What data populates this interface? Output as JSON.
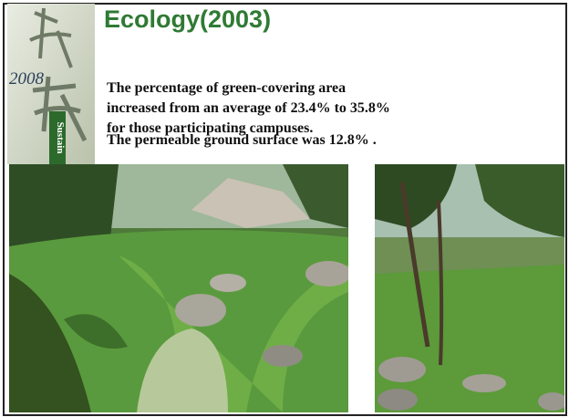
{
  "slide": {
    "title": "Ecology(2003)",
    "banner": {
      "year": "2008",
      "label": "Sustain"
    },
    "paragraphs": [
      "The percentage of green-covering area increased from an average of 23.4% to 35.8% for those participating campuses.",
      "The permeable ground surface was 12.8% ."
    ]
  }
}
